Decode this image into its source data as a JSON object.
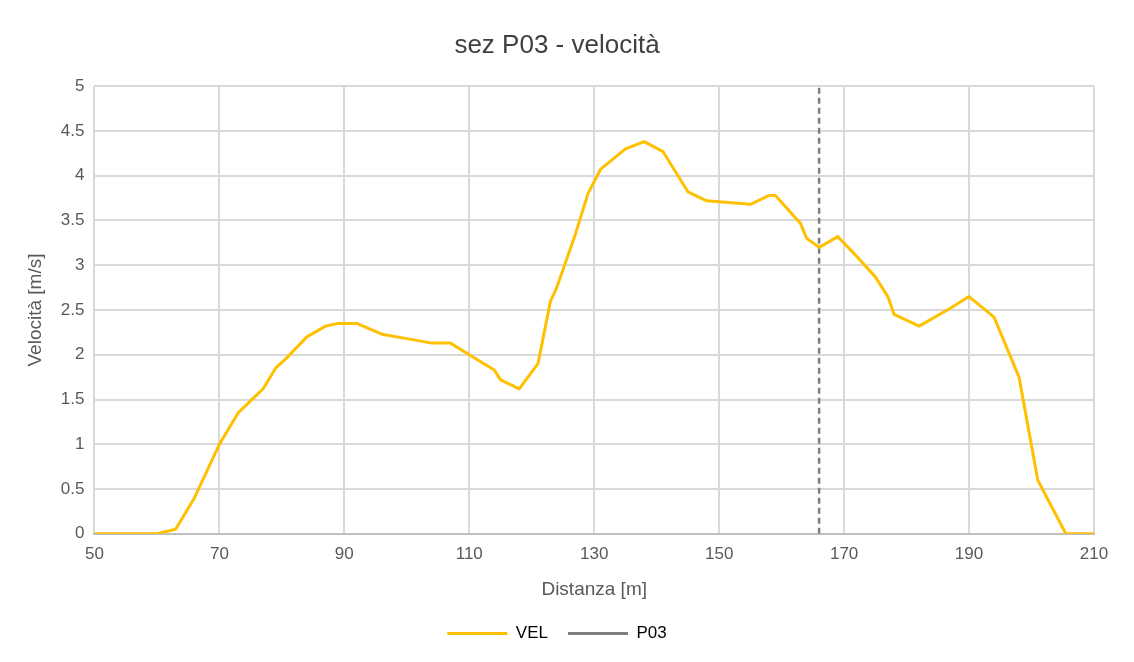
{
  "chart_data": {
    "type": "line",
    "title": "sez P03 - velocità",
    "xlabel": "Distanza [m]",
    "ylabel": "Velocità [m/s]",
    "xlim": [
      50,
      210
    ],
    "xticks": [
      50,
      70,
      90,
      110,
      130,
      150,
      170,
      190,
      210
    ],
    "ylim": [
      0,
      5
    ],
    "yticks": [
      0,
      0.5,
      1,
      1.5,
      2,
      2.5,
      3,
      3.5,
      4,
      4.5,
      5
    ],
    "grid": true,
    "legend": "bottom",
    "marker": "none",
    "line_style": "solid",
    "series": [
      {
        "name": "VEL",
        "color": "#ffc000",
        "x": [
          50,
          60,
          63,
          66,
          68,
          70,
          73,
          77,
          79,
          81,
          84,
          87,
          89,
          92,
          96,
          100,
          104,
          107,
          110,
          114,
          115,
          118,
          121,
          123,
          124,
          127,
          129,
          131,
          135,
          138,
          141,
          145,
          148,
          155,
          158,
          159,
          163,
          164,
          166,
          169,
          172,
          175,
          177,
          178,
          182,
          187,
          190,
          194,
          198,
          201,
          205.5,
          210
        ],
        "values": [
          0,
          0,
          0.05,
          0.4,
          0.7,
          1.0,
          1.35,
          1.62,
          1.85,
          1.98,
          2.2,
          2.32,
          2.35,
          2.35,
          2.23,
          2.18,
          2.13,
          2.13,
          2.0,
          1.83,
          1.72,
          1.62,
          1.9,
          2.6,
          2.75,
          3.35,
          3.8,
          4.07,
          4.3,
          4.38,
          4.27,
          3.82,
          3.72,
          3.68,
          3.78,
          3.78,
          3.47,
          3.3,
          3.2,
          3.32,
          3.1,
          2.87,
          2.65,
          2.45,
          2.32,
          2.52,
          2.65,
          2.42,
          1.75,
          0.6,
          0,
          0
        ]
      }
    ],
    "ref_lines": [
      {
        "axis": "x",
        "value": 166,
        "label": "P03",
        "color": "#7f7f7f",
        "line_style": "dashed"
      }
    ]
  }
}
